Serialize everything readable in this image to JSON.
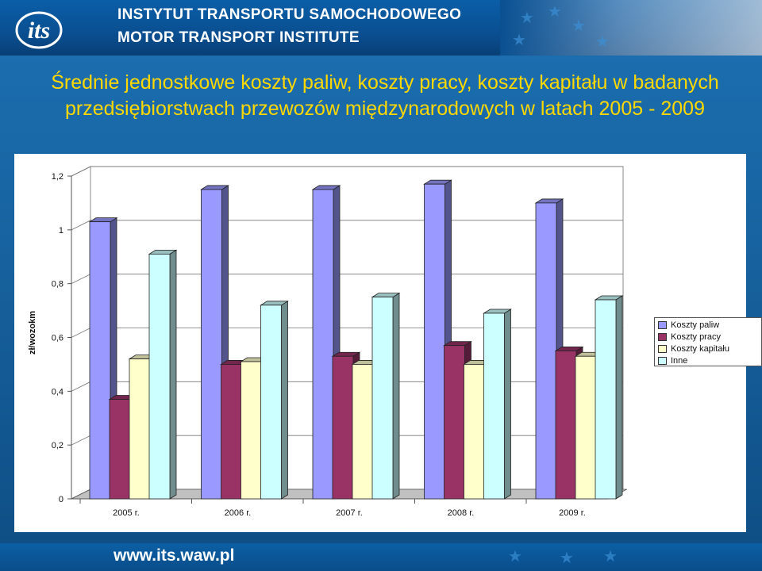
{
  "header": {
    "institute_pl": "INSTYTUT TRANSPORTU SAMOCHODOWEGO",
    "institute_en": "MOTOR TRANSPORT INSTITUTE",
    "logo_text": "its"
  },
  "footer": {
    "url": "www.its.waw.pl"
  },
  "colors": {
    "Koszty paliw": "#9999ff",
    "Koszty pracy": "#993366",
    "Koszty kapitału": "#ffffcc",
    "Inne": "#ccffff"
  },
  "chart_data": {
    "type": "bar",
    "title": "Średnie jednostkowe koszty paliw, koszty pracy, koszty kapitału w badanych przedsiębiorstwach przewozów międzynarodowych w latach 2005 - 2009",
    "ylabel": "zł/wozokm",
    "xlabel": "",
    "ylim": [
      0,
      1.2
    ],
    "yticks": [
      "0",
      "0,2",
      "0,4",
      "0,6",
      "0,8",
      "1",
      "1,2"
    ],
    "categories": [
      "2005 r.",
      "2006 r.",
      "2007 r.",
      "2008 r.",
      "2009 r."
    ],
    "series": [
      {
        "name": "Koszty paliw",
        "values": [
          1.03,
          1.15,
          1.15,
          1.17,
          1.1
        ]
      },
      {
        "name": "Koszty pracy",
        "values": [
          0.37,
          0.5,
          0.53,
          0.57,
          0.55
        ]
      },
      {
        "name": "Koszty kapitału",
        "values": [
          0.52,
          0.51,
          0.5,
          0.5,
          0.53
        ]
      },
      {
        "name": "Inne",
        "values": [
          0.91,
          0.72,
          0.75,
          0.69,
          0.74
        ]
      }
    ],
    "legend_position": "right",
    "grid": true
  }
}
